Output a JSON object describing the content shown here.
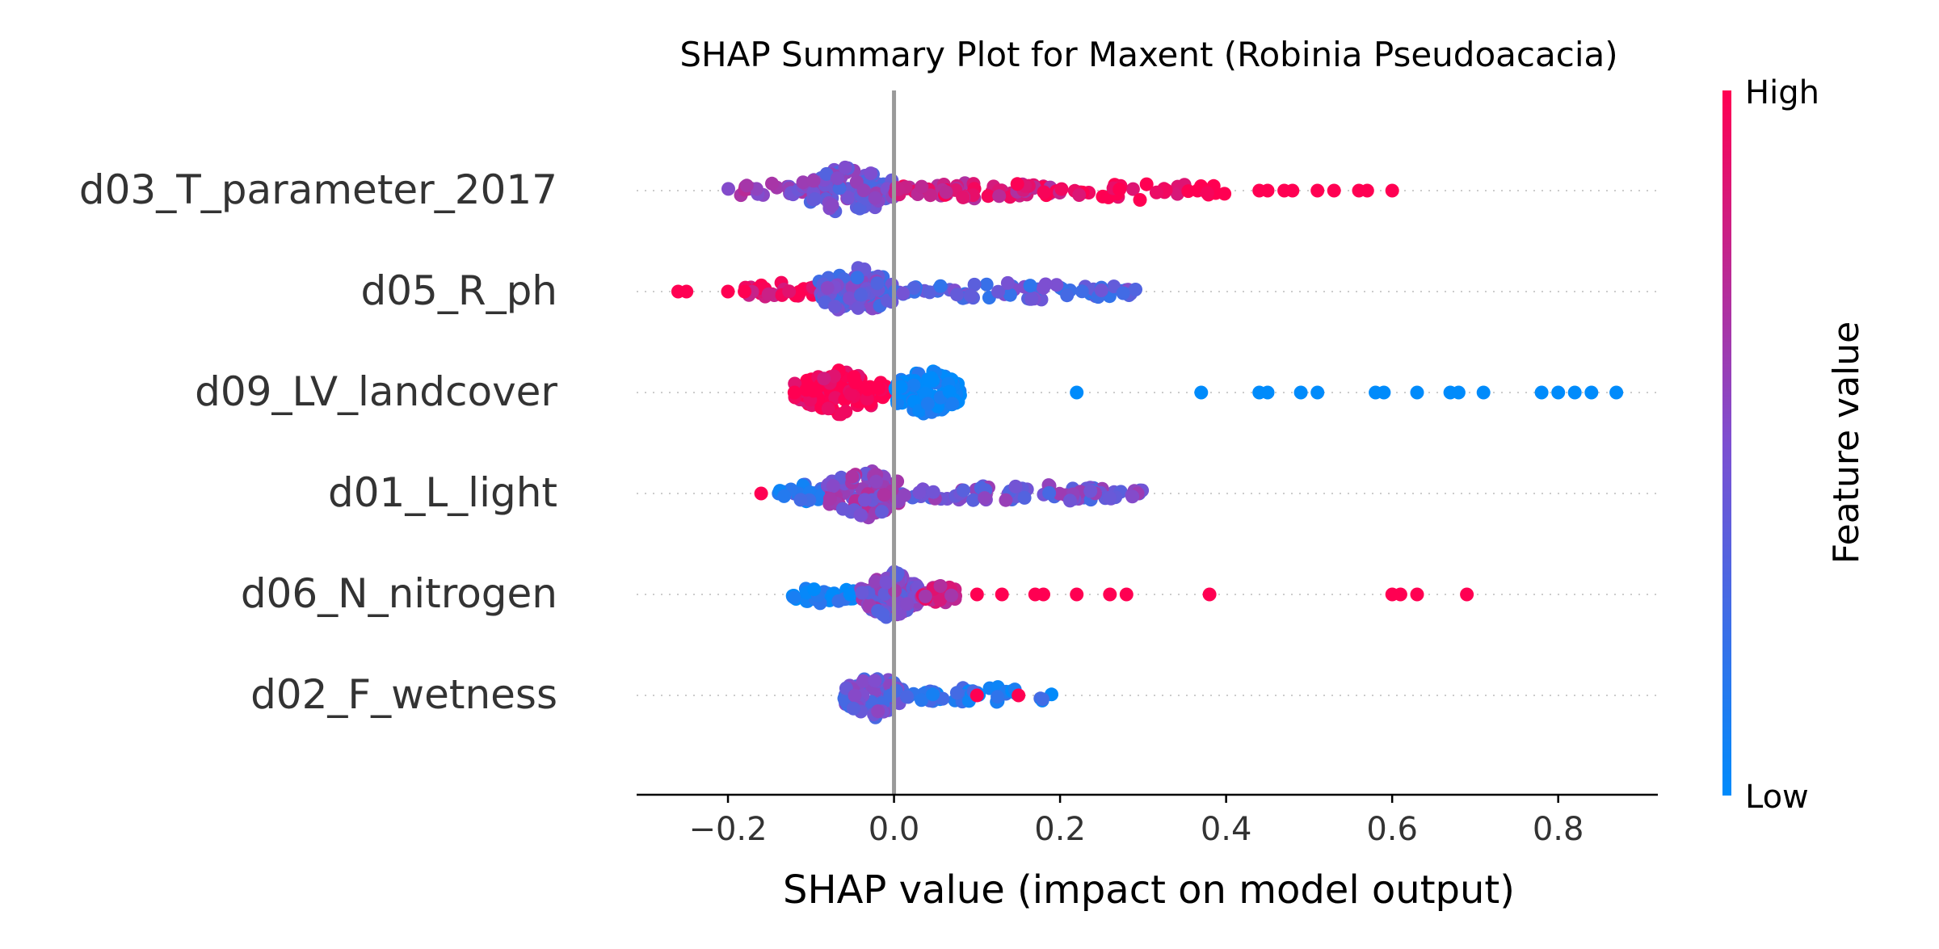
{
  "chart_data": {
    "type": "scatter",
    "subtype": "shap-beeswarm",
    "title": "SHAP Summary Plot for Maxent (Robinia Pseudoacacia)",
    "xlabel": "SHAP value (impact on model output)",
    "xlim": [
      -0.31,
      0.92
    ],
    "x_ticks": [
      -0.2,
      0.0,
      0.2,
      0.4,
      0.6,
      0.8
    ],
    "x_tick_labels": [
      "−0.2",
      "0.0",
      "0.2",
      "0.4",
      "0.6",
      "0.8"
    ],
    "zero_line": 0.0,
    "grid": false,
    "colorbar": {
      "label": "Feature value",
      "high_label": "High",
      "low_label": "Low",
      "high_color": "#ff0052",
      "low_color": "#008bfb",
      "placement": "right"
    },
    "features": [
      {
        "name": "d03_T_parameter_2017",
        "clusters": [
          {
            "from": -0.2,
            "to": -0.11,
            "n": 22,
            "color": 0.6
          },
          {
            "from": -0.11,
            "to": 0.0,
            "n": 95,
            "color": 0.45,
            "spread": 32
          },
          {
            "from": 0.0,
            "to": 0.2,
            "n": 70,
            "color": 0.85
          },
          {
            "from": 0.2,
            "to": 0.4,
            "n": 35,
            "color": 0.95
          }
        ],
        "points": [
          {
            "x": 0.44,
            "c": 1.0
          },
          {
            "x": 0.45,
            "c": 1.0
          },
          {
            "x": 0.47,
            "c": 1.0
          },
          {
            "x": 0.48,
            "c": 1.0
          },
          {
            "x": 0.51,
            "c": 1.0
          },
          {
            "x": 0.53,
            "c": 1.0
          },
          {
            "x": 0.56,
            "c": 1.0
          },
          {
            "x": 0.57,
            "c": 1.0
          },
          {
            "x": 0.6,
            "c": 1.0
          }
        ]
      },
      {
        "name": "d05_R_ph",
        "clusters": [
          {
            "from": -0.18,
            "to": -0.09,
            "n": 28,
            "color": 0.95
          },
          {
            "from": -0.09,
            "to": 0.0,
            "n": 90,
            "color": 0.4,
            "spread": 32
          },
          {
            "from": 0.0,
            "to": 0.3,
            "n": 75,
            "color": 0.35
          }
        ],
        "points": [
          {
            "x": -0.26,
            "c": 1.0
          },
          {
            "x": -0.25,
            "c": 1.0
          },
          {
            "x": -0.2,
            "c": 1.0
          },
          {
            "x": -0.18,
            "c": 1.0
          }
        ]
      },
      {
        "name": "d09_LV_landcover",
        "clusters": [
          {
            "from": -0.12,
            "to": -0.01,
            "n": 95,
            "color": 1.0,
            "spread": 28
          },
          {
            "from": 0.0,
            "to": 0.08,
            "n": 110,
            "color": 0.0,
            "spread": 30
          }
        ],
        "points": [
          {
            "x": -0.12,
            "c": 1.0
          },
          {
            "x": 0.22,
            "c": 0.0
          },
          {
            "x": 0.37,
            "c": 0.0
          },
          {
            "x": 0.44,
            "c": 0.0
          },
          {
            "x": 0.45,
            "c": 0.0
          },
          {
            "x": 0.49,
            "c": 0.0
          },
          {
            "x": 0.51,
            "c": 0.0
          },
          {
            "x": 0.58,
            "c": 0.0
          },
          {
            "x": 0.59,
            "c": 0.0
          },
          {
            "x": 0.63,
            "c": 0.0
          },
          {
            "x": 0.67,
            "c": 0.0
          },
          {
            "x": 0.68,
            "c": 0.0
          },
          {
            "x": 0.71,
            "c": 0.0
          },
          {
            "x": 0.78,
            "c": 0.0
          },
          {
            "x": 0.8,
            "c": 0.0
          },
          {
            "x": 0.82,
            "c": 0.0
          },
          {
            "x": 0.84,
            "c": 0.0
          },
          {
            "x": 0.87,
            "c": 0.0
          }
        ]
      },
      {
        "name": "d01_L_light",
        "clusters": [
          {
            "from": -0.14,
            "to": -0.08,
            "n": 25,
            "color": 0.2
          },
          {
            "from": -0.08,
            "to": 0.01,
            "n": 95,
            "color": 0.55,
            "spread": 32
          },
          {
            "from": 0.01,
            "to": 0.3,
            "n": 80,
            "color": 0.45
          }
        ],
        "points": [
          {
            "x": -0.16,
            "c": 1.0
          }
        ]
      },
      {
        "name": "d06_N_nitrogen",
        "clusters": [
          {
            "from": -0.13,
            "to": -0.04,
            "n": 40,
            "color": 0.05
          },
          {
            "from": -0.04,
            "to": 0.03,
            "n": 90,
            "color": 0.5,
            "spread": 32
          },
          {
            "from": 0.03,
            "to": 0.08,
            "n": 30,
            "color": 0.8
          }
        ],
        "points": [
          {
            "x": 0.1,
            "c": 1.0
          },
          {
            "x": 0.13,
            "c": 1.0
          },
          {
            "x": 0.17,
            "c": 1.0
          },
          {
            "x": 0.18,
            "c": 1.0
          },
          {
            "x": 0.22,
            "c": 1.0
          },
          {
            "x": 0.26,
            "c": 1.0
          },
          {
            "x": 0.28,
            "c": 1.0
          },
          {
            "x": 0.38,
            "c": 1.0
          },
          {
            "x": 0.6,
            "c": 1.0
          },
          {
            "x": 0.61,
            "c": 1.0
          },
          {
            "x": 0.63,
            "c": 1.0
          },
          {
            "x": 0.69,
            "c": 1.0
          }
        ]
      },
      {
        "name": "d02_F_wetness",
        "clusters": [
          {
            "from": -0.06,
            "to": 0.01,
            "n": 70,
            "color": 0.4,
            "spread": 30
          },
          {
            "from": 0.01,
            "to": 0.2,
            "n": 45,
            "color": 0.15
          }
        ],
        "points": [
          {
            "x": 0.1,
            "c": 1.0
          },
          {
            "x": 0.15,
            "c": 1.0
          }
        ]
      }
    ]
  }
}
